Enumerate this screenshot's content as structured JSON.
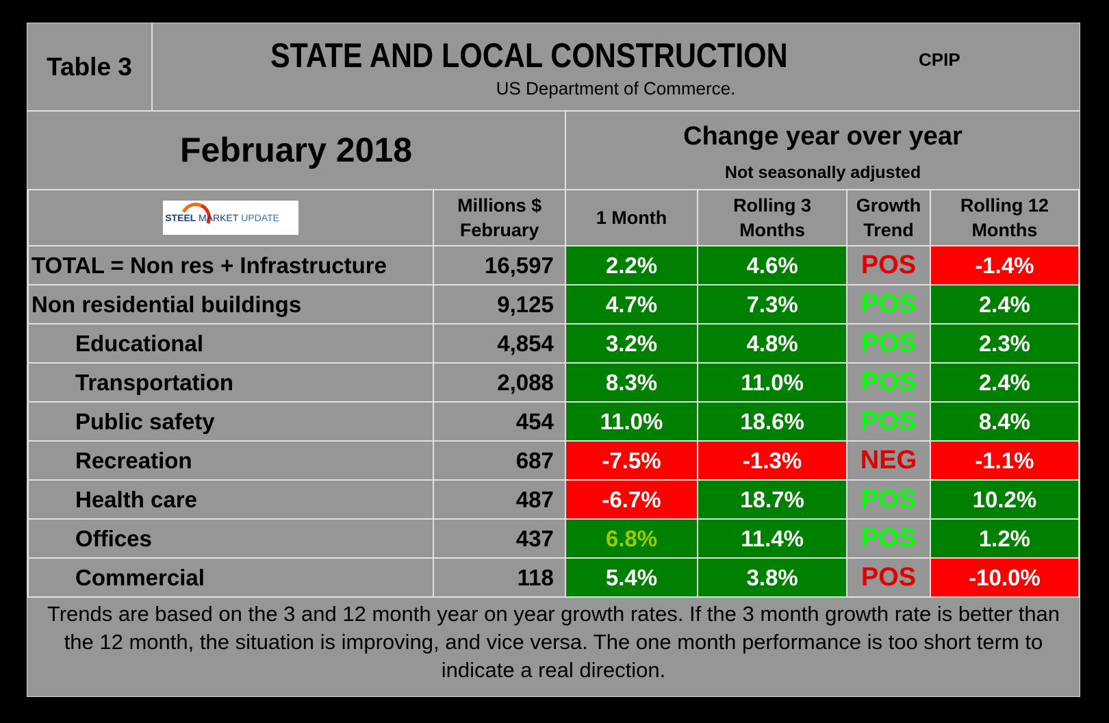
{
  "header": {
    "table_label": "Table 3",
    "title": "STATE AND LOCAL CONSTRUCTION",
    "tag": "CPIP",
    "source": "US Department of Commerce.",
    "period": "February 2018",
    "change_title": "Change year over year",
    "change_subtitle": "Not seasonally adjusted",
    "logo_text": {
      "steel": "STEEL",
      "market": "MARKET",
      "update": "UPDATE"
    }
  },
  "columns": {
    "value": "Millions $ February",
    "one_month": "1 Month",
    "rolling3": "Rolling 3 Months",
    "trend": "Growth Trend",
    "rolling12": "Rolling 12 Months"
  },
  "colors": {
    "green": "#008000",
    "red": "#ff0000",
    "pos": "#00ff00",
    "neg": "#e00000",
    "olive": "#99cc00"
  },
  "rows": [
    {
      "label": "TOTAL = Non res + Infrastructure",
      "value": "16,597",
      "m1": "2.2%",
      "m3": "4.6%",
      "trend": "POS",
      "m12": "-1.4%"
    },
    {
      "label": "Non residential buildings",
      "value": "9,125",
      "m1": "4.7%",
      "m3": "7.3%",
      "trend": "POS",
      "m12": "2.4%"
    },
    {
      "label": "Educational",
      "value": "4,854",
      "m1": "3.2%",
      "m3": "4.8%",
      "trend": "POS",
      "m12": "2.3%"
    },
    {
      "label": "Transportation",
      "value": "2,088",
      "m1": "8.3%",
      "m3": "11.0%",
      "trend": "POS",
      "m12": "2.4%"
    },
    {
      "label": "Public safety",
      "value": "454",
      "m1": "11.0%",
      "m3": "18.6%",
      "trend": "POS",
      "m12": "8.4%"
    },
    {
      "label": "Recreation",
      "value": "687",
      "m1": "-7.5%",
      "m3": "-1.3%",
      "trend": "NEG",
      "m12": "-1.1%"
    },
    {
      "label": "Health care",
      "value": "487",
      "m1": "-6.7%",
      "m3": "18.7%",
      "trend": "POS",
      "m12": "10.2%"
    },
    {
      "label": "Offices",
      "value": "437",
      "m1": "6.8%",
      "m3": "11.4%",
      "trend": "POS",
      "m12": "1.2%"
    },
    {
      "label": "Commercial",
      "value": "118",
      "m1": "5.4%",
      "m3": "3.8%",
      "trend": "POS",
      "m12": "-10.0%"
    }
  ],
  "footnote": "Trends are based on the 3 and 12 month year on year growth rates. If the 3 month growth rate is better than the 12 month, the situation is improving, and vice versa. The one month performance is too short term to indicate a real direction."
}
